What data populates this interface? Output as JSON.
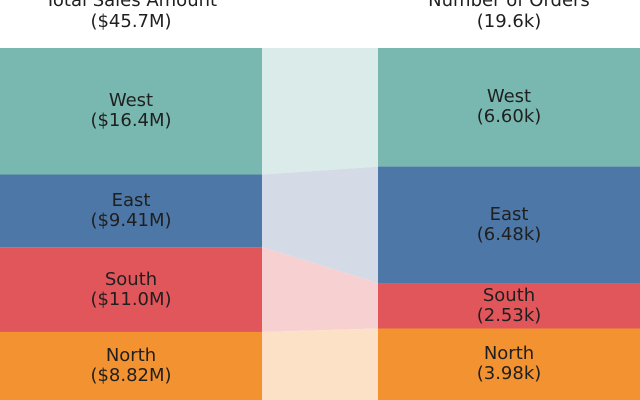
{
  "chart_data": {
    "type": "ribbon-flow",
    "columns": [
      {
        "id": "sales",
        "label": "Total Sales Amount",
        "total_label": "($45.7M)"
      },
      {
        "id": "orders",
        "label": "Number of Orders",
        "total_label": "(19.6k)"
      }
    ],
    "categories": [
      {
        "name": "West",
        "color": "#79b8b0",
        "link_color": "#daebe9",
        "sales": 16.4,
        "sales_label": "($16.4M)",
        "orders": 6.6,
        "orders_label": "(6.60k)"
      },
      {
        "name": "East",
        "color": "#4d77a6",
        "link_color": "#d4dbe7",
        "sales": 9.41,
        "sales_label": "($9.41M)",
        "orders": 6.48,
        "orders_label": "(6.48k)"
      },
      {
        "name": "South",
        "color": "#e1565b",
        "link_color": "#f7d1d2",
        "sales": 11.0,
        "sales_label": "($11.0M)",
        "orders": 2.53,
        "orders_label": "(2.53k)"
      },
      {
        "name": "North",
        "color": "#f39230",
        "link_color": "#fde1c6",
        "sales": 8.82,
        "sales_label": "($8.82M)",
        "orders": 3.98,
        "orders_label": "(3.98k)"
      }
    ]
  }
}
